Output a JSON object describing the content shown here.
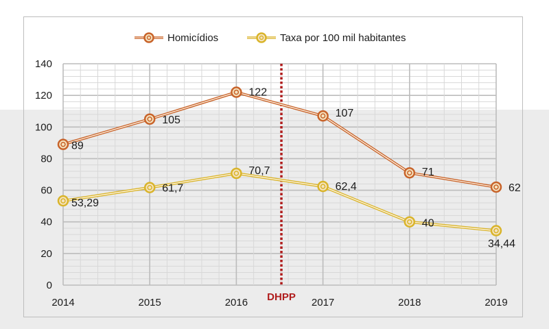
{
  "chart_data": {
    "type": "line",
    "title": "",
    "xlabel": "",
    "ylabel": "",
    "x": [
      "2014",
      "2015",
      "2016",
      "2017",
      "2018",
      "2019"
    ],
    "ylim": [
      0,
      140
    ],
    "yticks": [
      "0",
      "20",
      "40",
      "60",
      "80",
      "100",
      "120",
      "140"
    ],
    "grid": true,
    "legend_position": "top",
    "series": [
      {
        "name": "Homicídios",
        "color": "#c8632a",
        "values": [
          89,
          105,
          122,
          107,
          71,
          62
        ],
        "labels": [
          "89",
          "105",
          "122",
          "107",
          "71",
          "62"
        ]
      },
      {
        "name": "Taxa por 100 mil habitantes",
        "color": "#d9b42a",
        "values": [
          53.29,
          61.7,
          70.7,
          62.4,
          40,
          34.44
        ],
        "labels": [
          "53,29",
          "61,7",
          "70,7",
          "62,4",
          "40",
          "34,44"
        ]
      }
    ],
    "annotations": [
      {
        "text": "DHPP",
        "type": "vertical-dotted-line",
        "x_position": 2016.52,
        "color": "#b01c1c"
      }
    ]
  }
}
